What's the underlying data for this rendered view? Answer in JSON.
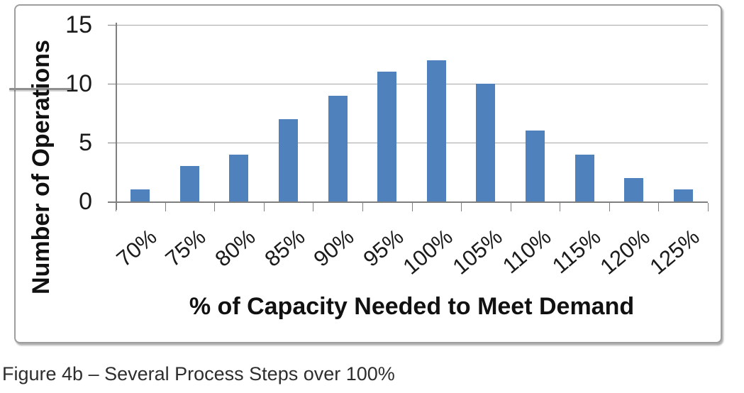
{
  "figure_caption": "Figure 4b – Several Process Steps over 100%",
  "chart_data": {
    "type": "bar",
    "title": "",
    "categories": [
      "70%",
      "75%",
      "80%",
      "85%",
      "90%",
      "95%",
      "100%",
      "105%",
      "110%",
      "115%",
      "120%",
      "125%"
    ],
    "values": [
      1,
      3,
      4,
      7,
      9,
      11,
      12,
      10,
      6,
      4,
      2,
      1
    ],
    "xlabel": "% of Capacity Needed to Meet Demand",
    "ylabel": "Number of Operations",
    "ylim": [
      0,
      15
    ],
    "yticks": [
      0,
      5,
      10,
      15
    ],
    "grid": true,
    "legend": false,
    "bar_color": "#4F81BD",
    "gridline_color": "#A6A6A6",
    "axis_color": "#7F7F7F",
    "frame_border_color": "#9E9E9E"
  }
}
